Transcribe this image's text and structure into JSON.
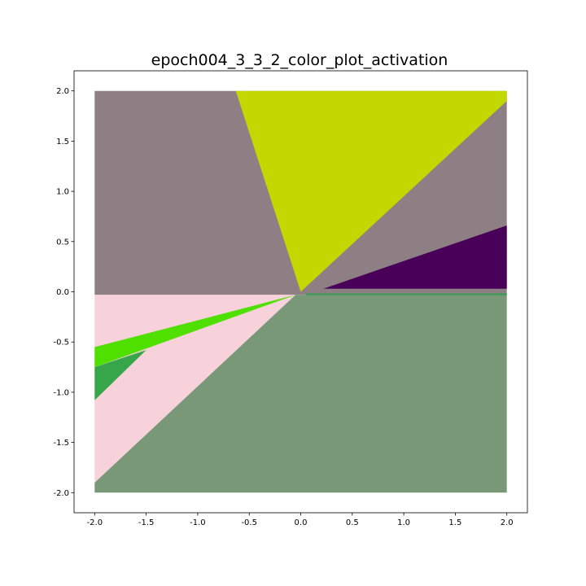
{
  "chart_data": {
    "type": "heatmap",
    "title": "epoch004_3_3_2_color_plot_activation",
    "xlabel": "",
    "ylabel": "",
    "xlim": [
      -2.2,
      2.2
    ],
    "ylim": [
      -2.2,
      2.2
    ],
    "grid": false,
    "x_ticks": [
      "-2.0",
      "-1.5",
      "-1.0",
      "-0.5",
      "0.0",
      "0.5",
      "1.0",
      "1.5",
      "2.0"
    ],
    "x_tick_values": [
      -2.0,
      -1.5,
      -1.0,
      -0.5,
      0.0,
      0.5,
      1.0,
      1.5,
      2.0
    ],
    "y_ticks": [
      "2.0",
      "1.5",
      "1.0",
      "0.5",
      "0.0",
      "-0.5",
      "-1.0",
      "-1.5",
      "-2.0"
    ],
    "y_tick_values": [
      2.0,
      1.5,
      1.0,
      0.5,
      0.0,
      -0.5,
      -1.0,
      -1.5,
      -2.0
    ],
    "regions": [
      {
        "color": "#8e7f84",
        "points": [
          [
            -2.0,
            2.0
          ],
          [
            2.0,
            2.0
          ],
          [
            2.0,
            -0.03
          ],
          [
            -2.0,
            -0.03
          ]
        ]
      },
      {
        "color": "#c2d800",
        "points": [
          [
            -0.63,
            2.0
          ],
          [
            2.0,
            2.0
          ],
          [
            2.0,
            1.9
          ],
          [
            0.0,
            0.0
          ]
        ]
      },
      {
        "color": "#490058",
        "points": [
          [
            0.22,
            0.03
          ],
          [
            2.0,
            0.66
          ],
          [
            2.0,
            0.03
          ]
        ]
      },
      {
        "color": "#f8d2da",
        "points": [
          [
            -2.0,
            -0.03
          ],
          [
            -0.05,
            -0.03
          ],
          [
            -2.0,
            -1.9
          ]
        ]
      },
      {
        "color": "#4fe000",
        "points": [
          [
            -2.0,
            -0.55
          ],
          [
            -0.05,
            -0.03
          ],
          [
            -2.0,
            -0.75
          ]
        ]
      },
      {
        "color": "#37a54a",
        "points": [
          [
            -2.0,
            -0.75
          ],
          [
            -1.5,
            -0.58
          ],
          [
            -2.0,
            -1.08
          ]
        ]
      },
      {
        "color": "#799878",
        "points": [
          [
            -0.05,
            -0.03
          ],
          [
            2.0,
            -0.03
          ],
          [
            2.0,
            -2.0
          ],
          [
            -2.0,
            -2.0
          ],
          [
            -2.0,
            -1.9
          ]
        ]
      },
      {
        "color": "#3f9a57",
        "points": [
          [
            0.05,
            -0.015
          ],
          [
            2.0,
            -0.015
          ],
          [
            2.0,
            -0.035
          ],
          [
            0.05,
            -0.035
          ]
        ]
      }
    ]
  }
}
